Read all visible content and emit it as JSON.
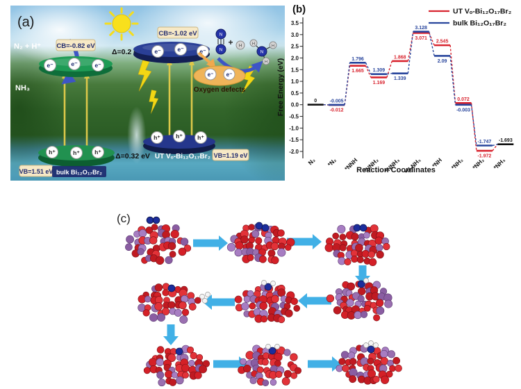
{
  "figure": {
    "panel_a": {
      "label": "(a)",
      "n2_h_label": "N₂ + H⁺",
      "nh3_label": "NH₃",
      "bulk_cb_label": "CB=-0.82 eV",
      "delta_cb_label": "Δ=0.2 eV",
      "ut_cb_label": "CB=-1.02 eV",
      "plus_sign": "+",
      "n_atom_label": "N",
      "h_atom_label": "H",
      "oxygen_defects_label": "Oxygen defects",
      "electron_label": "e⁻",
      "hole_label": "h⁺",
      "bulk_vb_label": "VB=1.51 eV",
      "bulk_name": "bulk Bi₁₂O₁₇Br₂",
      "delta_vb_label": "Δ=0.32 eV",
      "ut_name": "UT Vₒ-Bi₁₂O₁₇Br₂",
      "ut_vb_label": "VB=1.19 eV"
    },
    "panel_b": {
      "label": "(b)"
    },
    "panel_c": {
      "label": "(c)"
    }
  },
  "chart_data": {
    "type": "line",
    "subtype": "free-energy-step-diagram",
    "title": "",
    "xlabel": "Reaction Coordinates",
    "ylabel": "Free Energy (eV)",
    "ylim": [
      -2.0,
      3.5
    ],
    "yticks": [
      3.5,
      3.0,
      2.5,
      2.0,
      1.5,
      1.0,
      0.5,
      0.0,
      -0.5,
      -1.0,
      -1.5,
      -2.0
    ],
    "grid": false,
    "legend_position": "top-right",
    "value_labels": true,
    "categories": [
      "N₂",
      "*N₂",
      "*NNH",
      "*NNH₂",
      "*NNH₃",
      "*N-NH₃",
      "*NH",
      "*NH₂",
      "*NH₂",
      "*NH₃"
    ],
    "series": [
      {
        "name": "UT Vₒ-Bi₁₂O₁₇Br₂",
        "color": "#d8232e",
        "line_style": "solid-plateau-dashed-connector",
        "values": [
          0,
          -0.012,
          1.665,
          1.169,
          1.868,
          3.071,
          2.545,
          0.072,
          -1.972,
          -1.693
        ],
        "labels": [
          "0",
          "-0.012",
          "1.665",
          "1.169",
          "1.868",
          "3.071",
          "2.545",
          "0.072",
          "-1.972",
          "-1.693"
        ]
      },
      {
        "name": "bulk Bi₁₂O₁₇Br₂",
        "color": "#27449c",
        "line_style": "solid-plateau-dashed-connector",
        "values": [
          0,
          -0.005,
          1.796,
          1.309,
          1.339,
          3.128,
          2.09,
          -0.003,
          -1.747,
          -1.693
        ],
        "labels": [
          "0",
          "-0.005",
          "1.796",
          "1.309",
          "1.339",
          "3.128",
          "2.09",
          "-0.003",
          "-1.747",
          "-1.693"
        ]
      }
    ]
  },
  "panel_c": {
    "label": "(c)",
    "atom_colors": {
      "lattice_red": "#d42027",
      "lattice_purple": "#9a6fb0",
      "nitrogen_blue": "#1c2d9c",
      "hydrogen_white": "#f4f4f4",
      "arrow_blue": "#41b0e6"
    },
    "steps": [
      {
        "name": "slab-with-free-N2",
        "adsorbate": "free-N2"
      },
      {
        "name": "N2-adsorbed",
        "adsorbate": "N2"
      },
      {
        "name": "N2-activated-side-on",
        "adsorbate": "N2-side"
      },
      {
        "name": "NNH-intermediate",
        "adsorbate": "NNH"
      },
      {
        "name": "NNH2-intermediate",
        "adsorbate": "NNH2"
      },
      {
        "name": "first-NH3-release",
        "adsorbate": "NH3-leaving"
      },
      {
        "name": "N-remaining-on-slab",
        "adsorbate": "N"
      },
      {
        "name": "NH2-intermediate",
        "adsorbate": "NH2"
      },
      {
        "name": "NH3-on-slab",
        "adsorbate": "NH3"
      }
    ],
    "flow": [
      "right",
      "right",
      "down",
      "left",
      "left",
      "down",
      "right",
      "right"
    ]
  }
}
